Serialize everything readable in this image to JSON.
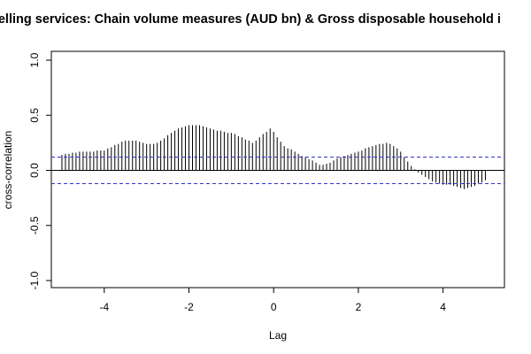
{
  "chart_data": {
    "type": "bar",
    "title": "er dwelling services: Chain volume measures (AUD bn) & Gross disposable household i",
    "xlabel": "Lag",
    "ylabel": "cross-correlation",
    "xlim": [
      -5.25,
      5.45
    ],
    "ylim": [
      -1.0,
      1.0
    ],
    "x_ticks": [
      "-4",
      "-2",
      "0",
      "2",
      "4"
    ],
    "y_ticks": [
      "-1.0",
      "-0.5",
      "0.0",
      "0.5",
      "1.0"
    ],
    "confidence_band": [
      0.12,
      -0.12
    ],
    "lags": [
      -5.0,
      -4.9167,
      -4.8333,
      -4.75,
      -4.6667,
      -4.5833,
      -4.5,
      -4.4167,
      -4.3333,
      -4.25,
      -4.1667,
      -4.0833,
      -4.0,
      -3.9167,
      -3.8333,
      -3.75,
      -3.6667,
      -3.5833,
      -3.5,
      -3.4167,
      -3.3333,
      -3.25,
      -3.1667,
      -3.0833,
      -3.0,
      -2.9167,
      -2.8333,
      -2.75,
      -2.6667,
      -2.5833,
      -2.5,
      -2.4167,
      -2.3333,
      -2.25,
      -2.1667,
      -2.0833,
      -2.0,
      -1.9167,
      -1.8333,
      -1.75,
      -1.6667,
      -1.5833,
      -1.5,
      -1.4167,
      -1.3333,
      -1.25,
      -1.1667,
      -1.0833,
      -1.0,
      -0.9167,
      -0.8333,
      -0.75,
      -0.6667,
      -0.5833,
      -0.5,
      -0.4167,
      -0.3333,
      -0.25,
      -0.1667,
      -0.0833,
      0.0,
      0.0833,
      0.1667,
      0.25,
      0.3333,
      0.4167,
      0.5,
      0.5833,
      0.6667,
      0.75,
      0.8333,
      0.9167,
      1.0,
      1.0833,
      1.1667,
      1.25,
      1.3333,
      1.4167,
      1.5,
      1.5833,
      1.6667,
      1.75,
      1.8333,
      1.9167,
      2.0,
      2.0833,
      2.1667,
      2.25,
      2.3333,
      2.4167,
      2.5,
      2.5833,
      2.6667,
      2.75,
      2.8333,
      2.9167,
      3.0,
      3.0833,
      3.1667,
      3.25,
      3.3333,
      3.4167,
      3.5,
      3.5833,
      3.6667,
      3.75,
      3.8333,
      3.9167,
      4.0,
      4.0833,
      4.1667,
      4.25,
      4.3333,
      4.4167,
      4.5,
      4.5833,
      4.6667,
      4.75,
      4.8333,
      4.9167,
      5.0
    ],
    "values": [
      0.14,
      0.15,
      0.15,
      0.16,
      0.16,
      0.17,
      0.17,
      0.17,
      0.17,
      0.17,
      0.18,
      0.18,
      0.18,
      0.2,
      0.21,
      0.23,
      0.24,
      0.26,
      0.27,
      0.27,
      0.27,
      0.27,
      0.26,
      0.25,
      0.24,
      0.24,
      0.24,
      0.25,
      0.27,
      0.29,
      0.32,
      0.34,
      0.36,
      0.38,
      0.39,
      0.4,
      0.41,
      0.41,
      0.41,
      0.41,
      0.4,
      0.39,
      0.38,
      0.37,
      0.36,
      0.36,
      0.35,
      0.34,
      0.34,
      0.33,
      0.31,
      0.3,
      0.28,
      0.27,
      0.25,
      0.27,
      0.3,
      0.33,
      0.35,
      0.38,
      0.35,
      0.3,
      0.26,
      0.22,
      0.2,
      0.19,
      0.17,
      0.15,
      0.13,
      0.12,
      0.1,
      0.09,
      0.07,
      0.05,
      0.05,
      0.06,
      0.07,
      0.09,
      0.11,
      0.12,
      0.13,
      0.14,
      0.15,
      0.16,
      0.17,
      0.18,
      0.2,
      0.21,
      0.22,
      0.23,
      0.24,
      0.24,
      0.25,
      0.24,
      0.22,
      0.2,
      0.17,
      0.12,
      0.08,
      0.04,
      0.01,
      -0.02,
      -0.04,
      -0.06,
      -0.08,
      -0.1,
      -0.11,
      -0.12,
      -0.13,
      -0.13,
      -0.13,
      -0.14,
      -0.15,
      -0.16,
      -0.17,
      -0.16,
      -0.15,
      -0.14,
      -0.12,
      -0.11,
      -0.09
    ]
  }
}
